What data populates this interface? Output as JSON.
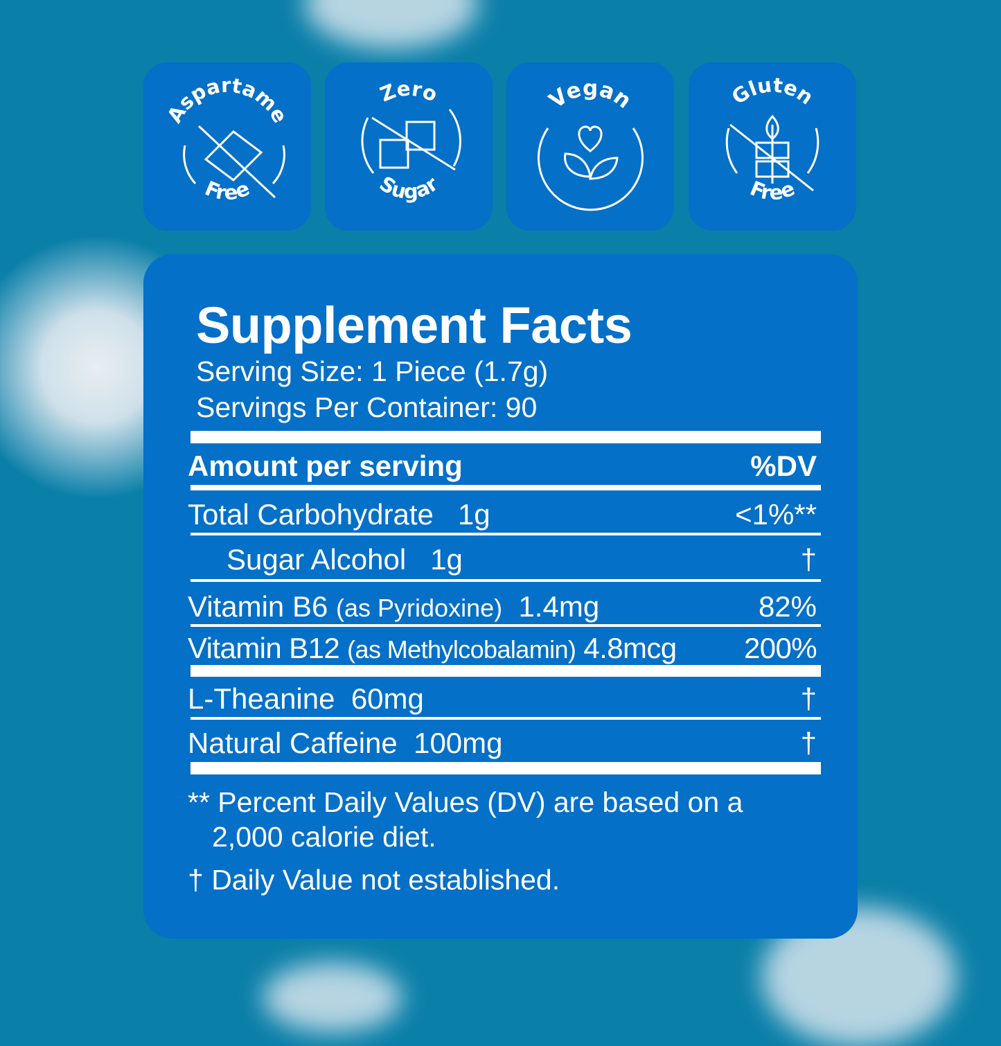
{
  "badges": [
    {
      "top": "Aspartame",
      "bottom": "Free",
      "icon": "candy-wrapper-crossed-icon"
    },
    {
      "top": "Zero",
      "bottom": "Sugar",
      "icon": "sugar-cubes-crossed-icon"
    },
    {
      "top": "Vegan",
      "bottom": "",
      "icon": "heart-leaves-icon"
    },
    {
      "top": "Gluten",
      "bottom": "Free",
      "icon": "wheat-crossed-icon"
    }
  ],
  "facts": {
    "title": "Supplement Facts",
    "serving_size": "Serving Size: 1 Piece (1.7g)",
    "servings_per_container": "Servings Per Container: 90",
    "header_amount": "Amount per serving",
    "header_dv": "%DV",
    "rows": [
      {
        "name": "Total Carbohydrate",
        "detail": "",
        "amount": "1g",
        "dv": "<1%**"
      },
      {
        "name": "Sugar Alcohol",
        "detail": "",
        "amount": "1g",
        "dv": "†"
      },
      {
        "name": "Vitamin B6",
        "detail": "(as Pyridoxine)",
        "amount": "1.4mg",
        "dv": "82%"
      },
      {
        "name": "Vitamin B12",
        "detail": "(as Methylcobalamin)",
        "amount": "4.8mcg",
        "dv": "200%"
      },
      {
        "name": "L-Theanine",
        "detail": "",
        "amount": "60mg",
        "dv": "†"
      },
      {
        "name": "Natural Caffeine",
        "detail": "",
        "amount": "100mg",
        "dv": "†"
      }
    ],
    "footnote1_line1": "** Percent Daily Values (DV) are based on a",
    "footnote1_line2": "2,000 calorie diet.",
    "footnote2": "† Daily Value not established."
  },
  "colors": {
    "background": "#0a7fa8",
    "panel": "#0470c8",
    "text": "#ffffff"
  }
}
